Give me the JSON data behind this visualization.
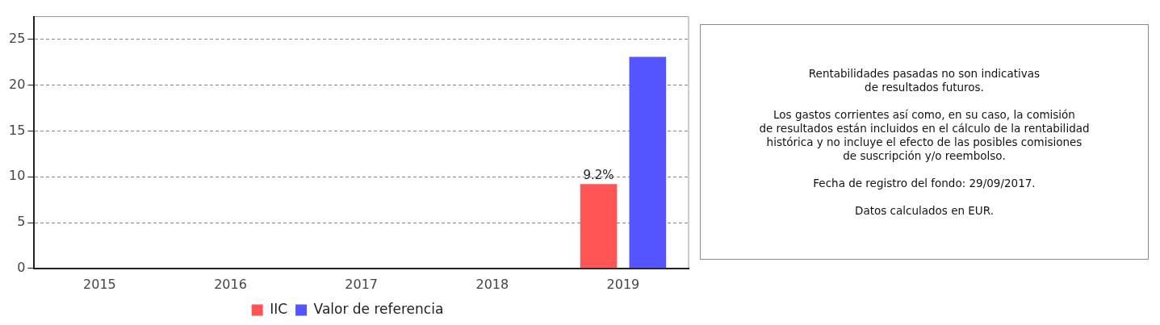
{
  "chart_data": {
    "type": "bar",
    "categories": [
      "2015",
      "2016",
      "2017",
      "2018",
      "2019"
    ],
    "series": [
      {
        "name": "IIC",
        "color": "#ff5555",
        "values": [
          null,
          null,
          null,
          null,
          9.2
        ],
        "value_labels": [
          null,
          null,
          null,
          null,
          "9.2%"
        ]
      },
      {
        "name": "Valor de referencia",
        "color": "#5555ff",
        "values": [
          null,
          null,
          null,
          null,
          23.1
        ]
      }
    ],
    "ylim": [
      0,
      27.5
    ],
    "yticks": [
      0,
      5,
      10,
      15,
      20,
      25
    ],
    "grid": "y",
    "legend": "bottom",
    "annotations": [
      "Rentabilidades pasadas no son indicativas\nde resultados futuros.\n\nLos gastos corrientes así como, en su caso, la comisión\nde resultados están incluidos en el cálculo de la rentabilidad\nhistórica y no incluye el efecto de las posibles comisiones\nde suscripción y/o reembolso.\n\nFecha de registro del fondo: 29/09/2017.\n\nDatos calculados en EUR."
    ]
  }
}
